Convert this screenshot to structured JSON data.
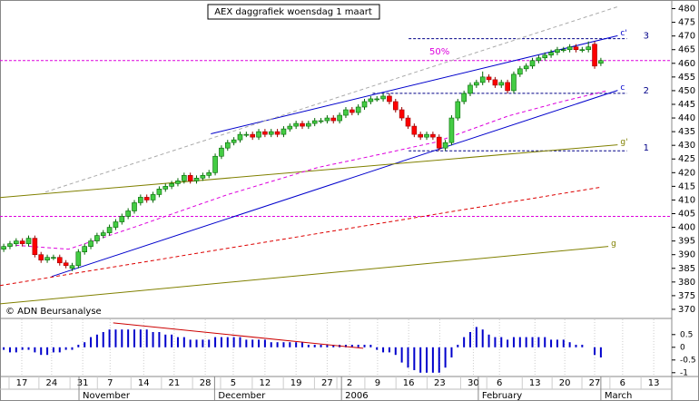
{
  "chart_data": {
    "type": "candlestick",
    "title": "AEX daggrafiek woensdag 1 maart",
    "credit": "© ADN Beursanalyse",
    "annotation": "50%",
    "x": [
      0,
      1,
      2,
      3,
      4,
      5,
      6,
      7,
      8,
      9,
      10,
      11,
      12,
      13,
      14,
      15,
      16,
      17,
      18,
      19,
      20,
      21,
      22,
      23,
      24,
      25,
      26,
      27,
      28,
      29,
      30,
      31,
      32,
      33,
      34,
      35,
      36,
      37,
      38,
      39,
      40,
      41,
      42,
      43,
      44,
      45,
      46,
      47,
      48,
      49,
      50,
      51,
      52,
      53,
      54,
      55,
      56,
      57,
      58,
      59,
      60,
      61,
      62,
      63,
      64,
      65,
      66,
      67,
      68,
      69,
      70,
      71,
      72,
      73,
      74,
      75,
      76,
      77,
      78,
      79,
      80,
      81,
      82,
      83,
      84,
      85,
      86,
      87,
      88,
      89,
      90,
      91,
      92,
      93,
      94,
      95,
      96
    ],
    "open": [
      392,
      393,
      394,
      395,
      394,
      396,
      390,
      388,
      389,
      389,
      387,
      385,
      386,
      391,
      393,
      395,
      397,
      398,
      400,
      402,
      404,
      406,
      409,
      411,
      410,
      412,
      414,
      415,
      416,
      417,
      419,
      417,
      418,
      419,
      420,
      426,
      429,
      431,
      432,
      434,
      434,
      433,
      435,
      434,
      435,
      434,
      436,
      437,
      438,
      437,
      438,
      439,
      439,
      440,
      439,
      441,
      443,
      442,
      444,
      446,
      447,
      447,
      448,
      446,
      443,
      440,
      437,
      434,
      433,
      434,
      433,
      429,
      431,
      440,
      446,
      449,
      452,
      453,
      455,
      454,
      452,
      453,
      450,
      456,
      458,
      459,
      461,
      462,
      463,
      464,
      465,
      465,
      466,
      465,
      465,
      467,
      460
    ],
    "high": [
      394,
      395,
      396,
      396,
      397,
      397,
      391,
      390,
      390,
      390,
      388,
      387,
      392,
      394,
      396,
      398,
      399,
      401,
      403,
      405,
      407,
      410,
      412,
      412,
      413,
      415,
      416,
      417,
      418,
      420,
      420,
      419,
      420,
      421,
      427,
      430,
      432,
      433,
      435,
      435,
      435,
      436,
      436,
      436,
      436,
      437,
      438,
      439,
      439,
      439,
      440,
      440,
      441,
      441,
      442,
      444,
      444,
      445,
      447,
      448,
      448,
      449,
      449,
      447,
      444,
      441,
      438,
      435,
      435,
      435,
      434,
      432,
      441,
      447,
      450,
      453,
      454,
      457,
      456,
      455,
      454,
      454,
      457,
      459,
      460,
      462,
      463,
      464,
      465,
      466,
      466,
      467,
      467,
      466,
      468,
      468,
      462
    ],
    "low": [
      391,
      392,
      393,
      393,
      393,
      389,
      387,
      387,
      388,
      386,
      385,
      384,
      385,
      390,
      392,
      394,
      396,
      397,
      399,
      401,
      403,
      405,
      408,
      409,
      409,
      411,
      413,
      414,
      415,
      416,
      416,
      416,
      417,
      418,
      419,
      425,
      428,
      430,
      431,
      433,
      432,
      432,
      433,
      433,
      433,
      433,
      435,
      436,
      436,
      436,
      437,
      438,
      438,
      438,
      438,
      440,
      441,
      441,
      443,
      445,
      446,
      446,
      445,
      442,
      439,
      436,
      433,
      432,
      432,
      432,
      428,
      428,
      430,
      439,
      445,
      448,
      451,
      452,
      453,
      451,
      451,
      449,
      449,
      455,
      457,
      458,
      460,
      461,
      462,
      463,
      464,
      464,
      464,
      464,
      464,
      458,
      459
    ],
    "close": [
      393,
      394,
      395,
      394,
      396,
      390,
      388,
      389,
      389,
      387,
      386,
      386,
      391,
      393,
      395,
      397,
      398,
      400,
      402,
      404,
      406,
      409,
      411,
      410,
      412,
      414,
      415,
      416,
      417,
      419,
      417,
      418,
      419,
      420,
      426,
      429,
      431,
      432,
      434,
      434,
      433,
      435,
      434,
      435,
      434,
      436,
      437,
      438,
      437,
      438,
      439,
      439,
      440,
      439,
      441,
      443,
      442,
      444,
      446,
      447,
      447,
      448,
      446,
      443,
      440,
      437,
      434,
      433,
      434,
      433,
      429,
      431,
      440,
      446,
      449,
      452,
      453,
      455,
      454,
      452,
      453,
      450,
      456,
      458,
      459,
      461,
      462,
      463,
      464,
      465,
      465,
      466,
      465,
      465,
      466,
      459,
      461
    ],
    "up_color": "#44cc44",
    "down_color": "#ff0000",
    "xlim": [
      -0.6,
      107.4
    ],
    "xticks": [
      {
        "value": 2.9,
        "label": "17"
      },
      {
        "value": 7.7,
        "label": "24"
      },
      {
        "value": 12.7,
        "label": "31"
      },
      {
        "value": 17.1,
        "label": "7"
      },
      {
        "value": 22.5,
        "label": "14"
      },
      {
        "value": 27.4,
        "label": "21"
      },
      {
        "value": 32.4,
        "label": "28"
      },
      {
        "value": 36.9,
        "label": "5"
      },
      {
        "value": 42.0,
        "label": "12"
      },
      {
        "value": 47.0,
        "label": "19"
      },
      {
        "value": 52.0,
        "label": "27"
      },
      {
        "value": 55.6,
        "label": "2"
      },
      {
        "value": 60.1,
        "label": "9"
      },
      {
        "value": 65.1,
        "label": "16"
      },
      {
        "value": 70.1,
        "label": "23"
      },
      {
        "value": 75.5,
        "label": "30"
      },
      {
        "value": 79.7,
        "label": "6"
      },
      {
        "value": 85.4,
        "label": "13"
      },
      {
        "value": 90.2,
        "label": "20"
      },
      {
        "value": 95.0,
        "label": "27"
      },
      {
        "value": 99.5,
        "label": "6"
      },
      {
        "value": 104.5,
        "label": "13"
      }
    ],
    "months": [
      {
        "value": 12.1,
        "label": "November"
      },
      {
        "value": 33.9,
        "label": "December"
      },
      {
        "value": 54.3,
        "label": "2006"
      },
      {
        "value": 76.3,
        "label": "February"
      },
      {
        "value": 96.0,
        "label": "March"
      }
    ],
    "ylim": [
      367,
      482.5
    ],
    "yticks": [
      370,
      375,
      380,
      385,
      390,
      395,
      400,
      405,
      410,
      415,
      420,
      425,
      430,
      435,
      440,
      445,
      450,
      455,
      460,
      465,
      470,
      475,
      480
    ],
    "overlays": [
      {
        "label": "c'",
        "color": "#0000cc",
        "dash": false,
        "x": [
          33.3,
          98.7
        ],
        "values": [
          434.2,
          470.1
        ]
      },
      {
        "label": "c",
        "color": "#0000cc",
        "dash": false,
        "x": [
          7.7,
          98.7
        ],
        "values": [
          382.0,
          450.1
        ]
      },
      {
        "color": "#aaaaaa",
        "dash": true,
        "x": [
          6.7,
          98.7
        ],
        "values": [
          412.9,
          480.7
        ]
      },
      {
        "label": "g'",
        "color": "#808000",
        "dash": false,
        "x": [
          -0.6,
          98.7
        ],
        "values": [
          410.9,
          430.2
        ]
      },
      {
        "label": "g",
        "color": "#808000",
        "dash": false,
        "x": [
          -0.6,
          97.2
        ],
        "values": [
          372.0,
          393.0
        ]
      },
      {
        "color": "#dd0000",
        "dash": true,
        "x": [
          -0.6,
          95.8
        ],
        "values": [
          378.7,
          414.6
        ]
      },
      {
        "color": "#dd00dd",
        "dash": true,
        "x": [
          0.9,
          10.4,
          21.3,
          35.9,
          50.5,
          60.7,
          69.5,
          81.2,
          89.9,
          97.2
        ],
        "values": [
          393.6,
          392.0,
          400.3,
          411.9,
          421.9,
          426.8,
          431.2,
          440.8,
          446.1,
          450.1
        ]
      }
    ],
    "hlines": [
      {
        "value": 461,
        "color": "#dd00dd",
        "x": [
          -0.6,
          107.4
        ]
      },
      {
        "value": 404,
        "color": "#dd00dd",
        "x": [
          -0.6,
          107.4
        ]
      },
      {
        "label": "3",
        "value": 469,
        "color": "#000088",
        "x": [
          65.1,
          100.2
        ]
      },
      {
        "label": "2",
        "value": 449,
        "color": "#000088",
        "x": [
          59.3,
          100.2
        ]
      },
      {
        "label": "1",
        "value": 428,
        "color": "#000088",
        "x": [
          65.1,
          100.2
        ]
      }
    ],
    "indicator": {
      "color": "#0000cc",
      "values": [
        -0.1,
        -0.2,
        -0.2,
        -0.1,
        -0.1,
        -0.2,
        -0.3,
        -0.3,
        -0.2,
        -0.2,
        -0.1,
        -0.1,
        0.1,
        0.2,
        0.4,
        0.5,
        0.6,
        0.7,
        0.7,
        0.7,
        0.7,
        0.7,
        0.7,
        0.7,
        0.6,
        0.6,
        0.5,
        0.5,
        0.4,
        0.4,
        0.3,
        0.3,
        0.3,
        0.3,
        0.4,
        0.4,
        0.4,
        0.4,
        0.4,
        0.3,
        0.3,
        0.3,
        0.3,
        0.2,
        0.2,
        0.2,
        0.2,
        0.2,
        0.2,
        0.1,
        0.1,
        0.1,
        0.1,
        0.1,
        0.1,
        0.1,
        0.1,
        0.1,
        0.1,
        0.1,
        -0.1,
        -0.2,
        -0.2,
        -0.3,
        -0.6,
        -0.8,
        -0.9,
        -1.0,
        -1.0,
        -1.0,
        -1.0,
        -0.8,
        -0.4,
        0.1,
        0.4,
        0.6,
        0.8,
        0.7,
        0.5,
        0.4,
        0.4,
        0.3,
        0.4,
        0.4,
        0.4,
        0.4,
        0.4,
        0.4,
        0.3,
        0.3,
        0.3,
        0.2,
        0.1,
        0.1,
        null,
        -0.3,
        -0.4
      ],
      "ylim": [
        -1.15,
        1.1
      ],
      "yticks": [
        0.5,
        0,
        -0.5,
        -1
      ],
      "trend": {
        "color": "#cc0000",
        "x": [
          17.6,
          57.8
        ],
        "values": [
          0.96,
          -0.04
        ]
      }
    }
  }
}
